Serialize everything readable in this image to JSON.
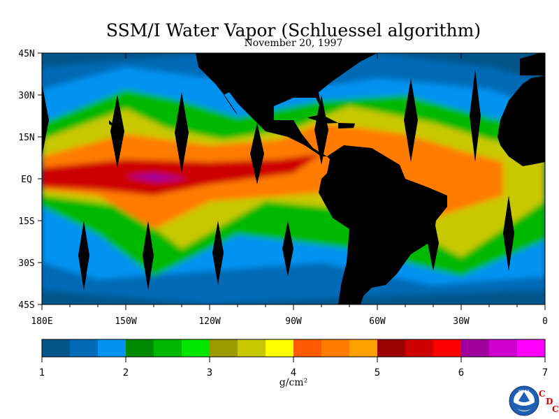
{
  "chart_data": {
    "type": "heatmap",
    "title": "SSM/I Water Vapor (Schluessel algorithm)",
    "subtitle": "November 20, 1997",
    "x_tick_labels": [
      "180E",
      "150W",
      "120W",
      "90W",
      "60W",
      "30W",
      "0"
    ],
    "x_ticks_deg": [
      180,
      150,
      120,
      90,
      60,
      30,
      0
    ],
    "y_tick_labels": [
      "45N",
      "30N",
      "15N",
      "EQ",
      "15S",
      "30S",
      "45S"
    ],
    "y_ticks_deg": [
      45,
      30,
      15,
      0,
      -15,
      -30,
      -45
    ],
    "xlim": [
      -180,
      0
    ],
    "ylim": [
      -45,
      45
    ],
    "colorbar": {
      "min": 1,
      "max": 7,
      "tick_labels": [
        "1",
        "2",
        "3",
        "4",
        "5",
        "6",
        "7"
      ],
      "unit_label": "g/cm²",
      "colors": [
        "#01558a",
        "#006bb6",
        "#0093f0",
        "#008a00",
        "#00b800",
        "#00e600",
        "#9b9b00",
        "#c8c800",
        "#ffff00",
        "#ff5a00",
        "#ff7c00",
        "#ffa000",
        "#9b0000",
        "#cd0000",
        "#ff0000",
        "#a0009b",
        "#cd00cd",
        "#ff00ff"
      ]
    }
  },
  "logo": {
    "agency": "NOAA",
    "side_text": [
      "C",
      "D",
      "C"
    ]
  },
  "colors": {
    "land": "#000000",
    "ocean_low": "#01558a"
  }
}
